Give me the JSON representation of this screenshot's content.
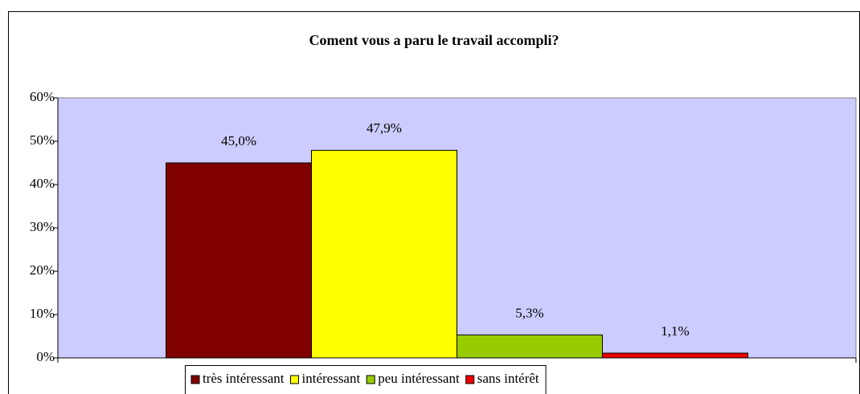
{
  "chart_data": {
    "type": "bar",
    "title": "Coment vous a paru le travail accompli?",
    "categories": [
      null
    ],
    "series": [
      {
        "name": "très intéressant",
        "color": "#800000",
        "values": [
          45.0
        ],
        "value_labels": [
          "45,0%"
        ]
      },
      {
        "name": "intéressant",
        "color": "#ffff00",
        "values": [
          47.9
        ],
        "value_labels": [
          "47,9%"
        ]
      },
      {
        "name": "peu intéressant",
        "color": "#99cc00",
        "values": [
          5.3
        ],
        "value_labels": [
          "5,3%"
        ]
      },
      {
        "name": "sans intérêt",
        "color": "#ee0000",
        "values": [
          1.1
        ],
        "value_labels": [
          "1,1%"
        ]
      }
    ],
    "ylim": [
      0,
      60
    ],
    "yticks": [
      {
        "value": 0,
        "label": "0%"
      },
      {
        "value": 10,
        "label": "10%"
      },
      {
        "value": 20,
        "label": "20%"
      },
      {
        "value": 30,
        "label": "30%"
      },
      {
        "value": 40,
        "label": "40%"
      },
      {
        "value": 50,
        "label": "50%"
      },
      {
        "value": 60,
        "label": "60%"
      }
    ],
    "grid": false,
    "plot_background": "#ccccff",
    "legend": "bottom"
  }
}
